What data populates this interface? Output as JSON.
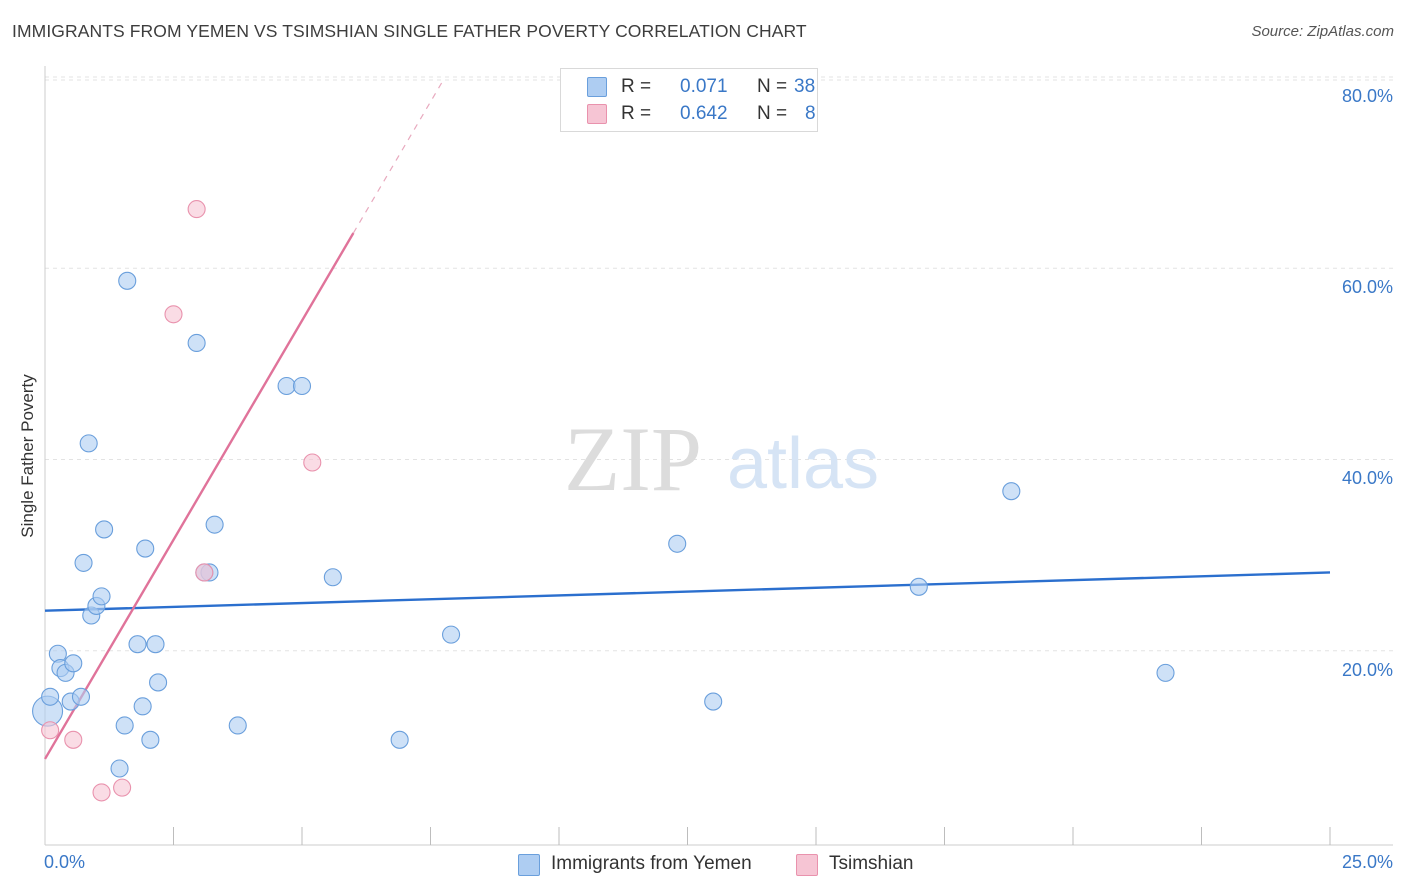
{
  "title": "IMMIGRANTS FROM YEMEN VS TSIMSHIAN SINGLE FATHER POVERTY CORRELATION CHART",
  "source": "Source: ZipAtlas.com",
  "watermark": {
    "zip": "ZIP",
    "atlas": "atlas"
  },
  "colors": {
    "blue_fill": "#aecdf2",
    "blue_stroke": "#6a9fdc",
    "blue_line": "#2b6fce",
    "pink_fill": "#f6c5d4",
    "pink_stroke": "#e992ad",
    "pink_line": "#e0739a",
    "tick_text": "#3a78c7",
    "grid": "#e3e3e3"
  },
  "legend": {
    "r_label": "R =",
    "n_label": "N =",
    "entries": [
      {
        "r": "0.071",
        "n": "38"
      },
      {
        "r": "0.642",
        "n": "8"
      }
    ]
  },
  "chart_data": {
    "type": "scatter",
    "title": "IMMIGRANTS FROM YEMEN VS TSIMSHIAN SINGLE FATHER POVERTY CORRELATION CHART",
    "xlabel": "",
    "ylabel": "Single Father Poverty",
    "xlim": [
      0,
      25
    ],
    "ylim": [
      0,
      80
    ],
    "x_tick_labels": [
      "0.0%",
      "25.0%"
    ],
    "y_ticks": [
      20,
      40,
      60,
      80
    ],
    "y_tick_labels": [
      "20.0%",
      "40.0%",
      "60.0%",
      "80.0%"
    ],
    "grid": true,
    "legend_position": "top-center",
    "series": [
      {
        "name": "Immigrants from Yemen",
        "color": "#aecdf2",
        "points": [
          {
            "x": 0.05,
            "y": 14.0,
            "big": true
          },
          {
            "x": 0.1,
            "y": 15.5
          },
          {
            "x": 0.25,
            "y": 20.0
          },
          {
            "x": 0.3,
            "y": 18.5
          },
          {
            "x": 0.4,
            "y": 18.0
          },
          {
            "x": 0.5,
            "y": 15.0
          },
          {
            "x": 0.55,
            "y": 19.0
          },
          {
            "x": 0.7,
            "y": 15.5
          },
          {
            "x": 0.75,
            "y": 29.5
          },
          {
            "x": 0.85,
            "y": 42.0
          },
          {
            "x": 0.9,
            "y": 24.0
          },
          {
            "x": 1.0,
            "y": 25.0
          },
          {
            "x": 1.1,
            "y": 26.0
          },
          {
            "x": 1.15,
            "y": 33.0
          },
          {
            "x": 1.45,
            "y": 8.0
          },
          {
            "x": 1.55,
            "y": 12.5
          },
          {
            "x": 1.6,
            "y": 59.0
          },
          {
            "x": 1.8,
            "y": 21.0
          },
          {
            "x": 1.9,
            "y": 14.5
          },
          {
            "x": 1.95,
            "y": 31.0
          },
          {
            "x": 2.05,
            "y": 11.0
          },
          {
            "x": 2.15,
            "y": 21.0
          },
          {
            "x": 2.2,
            "y": 17.0
          },
          {
            "x": 2.95,
            "y": 52.5
          },
          {
            "x": 3.2,
            "y": 28.5
          },
          {
            "x": 3.3,
            "y": 33.5
          },
          {
            "x": 3.75,
            "y": 12.5
          },
          {
            "x": 4.7,
            "y": 48.0
          },
          {
            "x": 5.0,
            "y": 48.0
          },
          {
            "x": 5.6,
            "y": 28.0
          },
          {
            "x": 6.9,
            "y": 11.0
          },
          {
            "x": 7.9,
            "y": 22.0
          },
          {
            "x": 12.3,
            "y": 31.5
          },
          {
            "x": 13.0,
            "y": 15.0
          },
          {
            "x": 17.0,
            "y": 27.0
          },
          {
            "x": 18.8,
            "y": 37.0
          },
          {
            "x": 21.8,
            "y": 18.0
          },
          {
            "x": 3.1,
            "y": 28.5
          }
        ]
      },
      {
        "name": "Tsimshian",
        "color": "#f6c5d4",
        "points": [
          {
            "x": 0.1,
            "y": 12.0
          },
          {
            "x": 0.55,
            "y": 11.0
          },
          {
            "x": 1.1,
            "y": 5.5
          },
          {
            "x": 1.5,
            "y": 6.0
          },
          {
            "x": 2.5,
            "y": 55.5
          },
          {
            "x": 2.95,
            "y": 66.5
          },
          {
            "x": 3.1,
            "y": 28.5
          },
          {
            "x": 5.2,
            "y": 40.0
          }
        ]
      }
    ],
    "trend_lines": [
      {
        "series": "Immigrants from Yemen",
        "x": [
          0,
          25
        ],
        "y": [
          24.5,
          28.5
        ]
      },
      {
        "series": "Tsimshian",
        "x": [
          0,
          6.0
        ],
        "y": [
          9.0,
          64.0
        ],
        "dashed_extension_to": {
          "x": 7.75,
          "y": 80.0
        }
      }
    ]
  }
}
